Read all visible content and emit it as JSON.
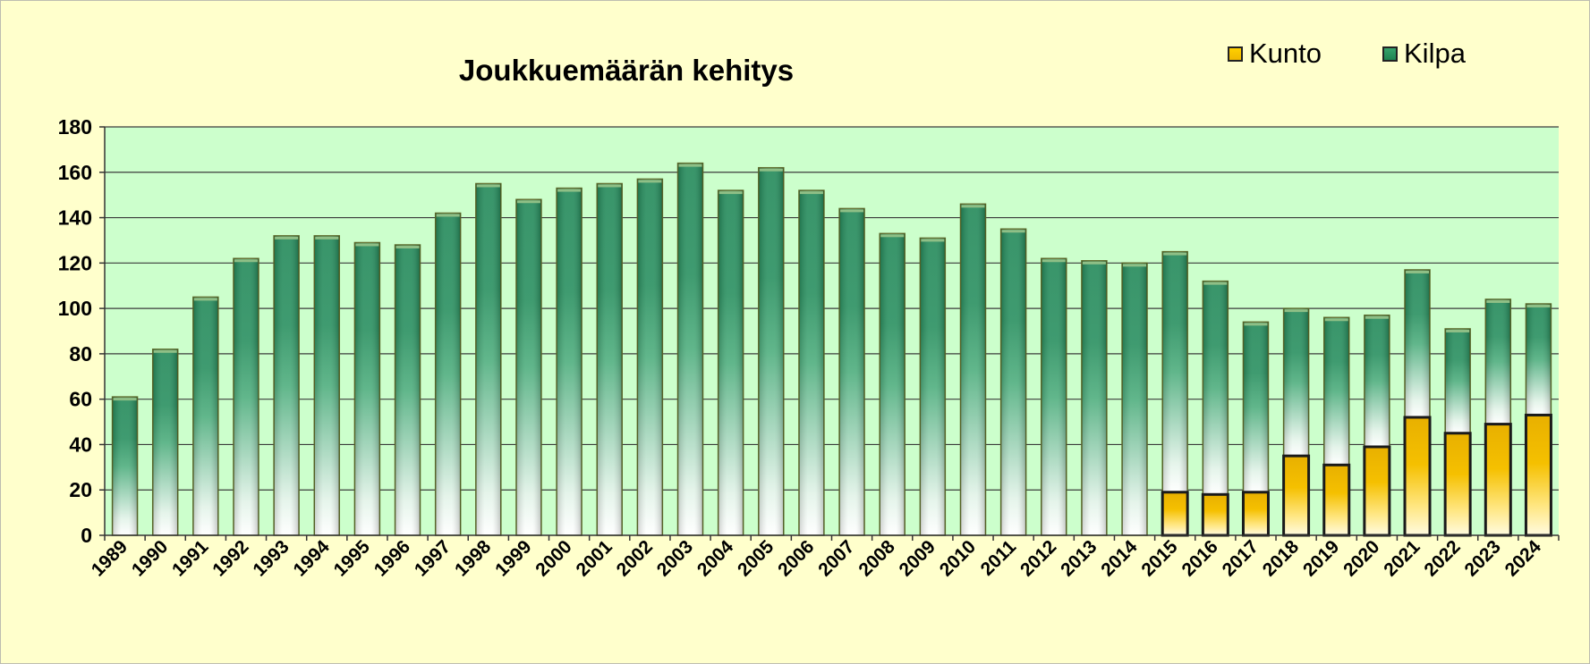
{
  "chart_data": {
    "type": "bar",
    "stacked": true,
    "title": "Joukkuemäärän kehitys",
    "xlabel": "",
    "ylabel": "",
    "ylim": [
      0,
      180
    ],
    "yticks": [
      0,
      20,
      40,
      60,
      80,
      100,
      120,
      140,
      160,
      180
    ],
    "grid": true,
    "legend_position": "top-right",
    "categories": [
      "1989",
      "1990",
      "1991",
      "1992",
      "1993",
      "1994",
      "1995",
      "1996",
      "1997",
      "1998",
      "1999",
      "2000",
      "2001",
      "2002",
      "2003",
      "2004",
      "2005",
      "2006",
      "2007",
      "2008",
      "2009",
      "2010",
      "2011",
      "2012",
      "2013",
      "2014",
      "2015",
      "2016",
      "2017",
      "2018",
      "2019",
      "2020",
      "2021",
      "2022",
      "2023",
      "2024"
    ],
    "series": [
      {
        "name": "Kunto",
        "color": "#f0b800",
        "values": [
          0,
          0,
          0,
          0,
          0,
          0,
          0,
          0,
          0,
          0,
          0,
          0,
          0,
          0,
          0,
          0,
          0,
          0,
          0,
          0,
          0,
          0,
          0,
          0,
          0,
          0,
          19,
          18,
          19,
          35,
          31,
          39,
          52,
          45,
          49,
          53
        ]
      },
      {
        "name": "Kilpa",
        "color": "#25895a",
        "values": [
          61,
          82,
          105,
          122,
          132,
          132,
          129,
          128,
          142,
          155,
          148,
          153,
          155,
          157,
          164,
          152,
          162,
          152,
          144,
          133,
          131,
          146,
          135,
          122,
          121,
          120,
          106,
          94,
          75,
          65,
          65,
          58,
          65,
          46,
          55,
          49
        ]
      }
    ]
  },
  "colors": {
    "page_background": "#ffffcc",
    "plot_background": "#ccffcc",
    "kunto": "#f0b800",
    "kilpa": "#25895a"
  }
}
